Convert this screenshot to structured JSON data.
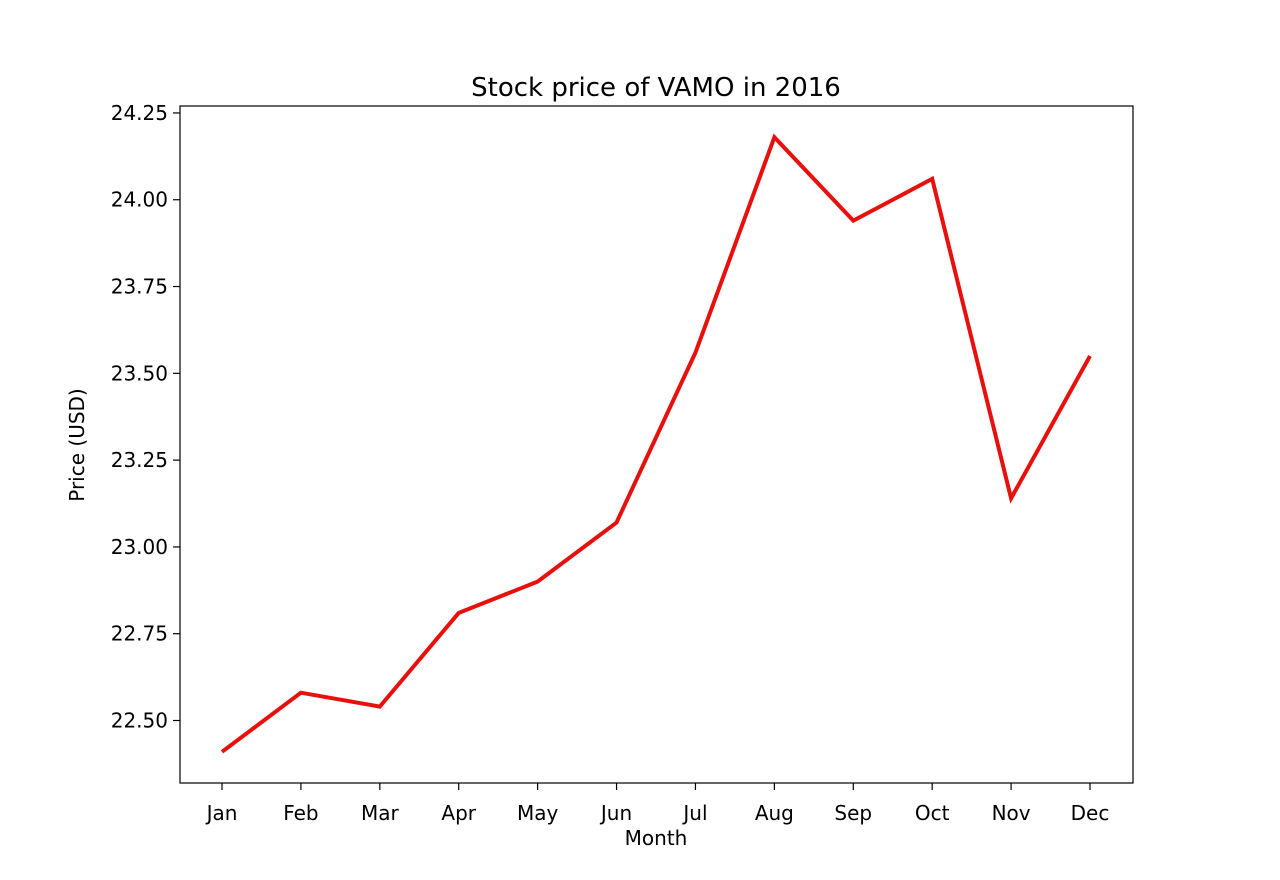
{
  "chart_data": {
    "type": "line",
    "title": "Stock price of VAMO in 2016",
    "xlabel": "Month",
    "ylabel": "Price (USD)",
    "categories": [
      "Jan",
      "Feb",
      "Mar",
      "Apr",
      "May",
      "Jun",
      "Jul",
      "Aug",
      "Sep",
      "Oct",
      "Nov",
      "Dec"
    ],
    "series": [
      {
        "values": [
          22.41,
          22.58,
          22.54,
          22.81,
          22.9,
          23.07,
          23.56,
          24.18,
          23.94,
          24.06,
          23.14,
          23.55
        ],
        "color": "#e8100c"
      }
    ],
    "ylim": [
      22.32,
      24.27
    ],
    "yticks": [
      "22.50",
      "22.75",
      "23.00",
      "23.25",
      "23.50",
      "23.75",
      "24.00",
      "24.25"
    ],
    "grid": false,
    "legend": "none"
  }
}
